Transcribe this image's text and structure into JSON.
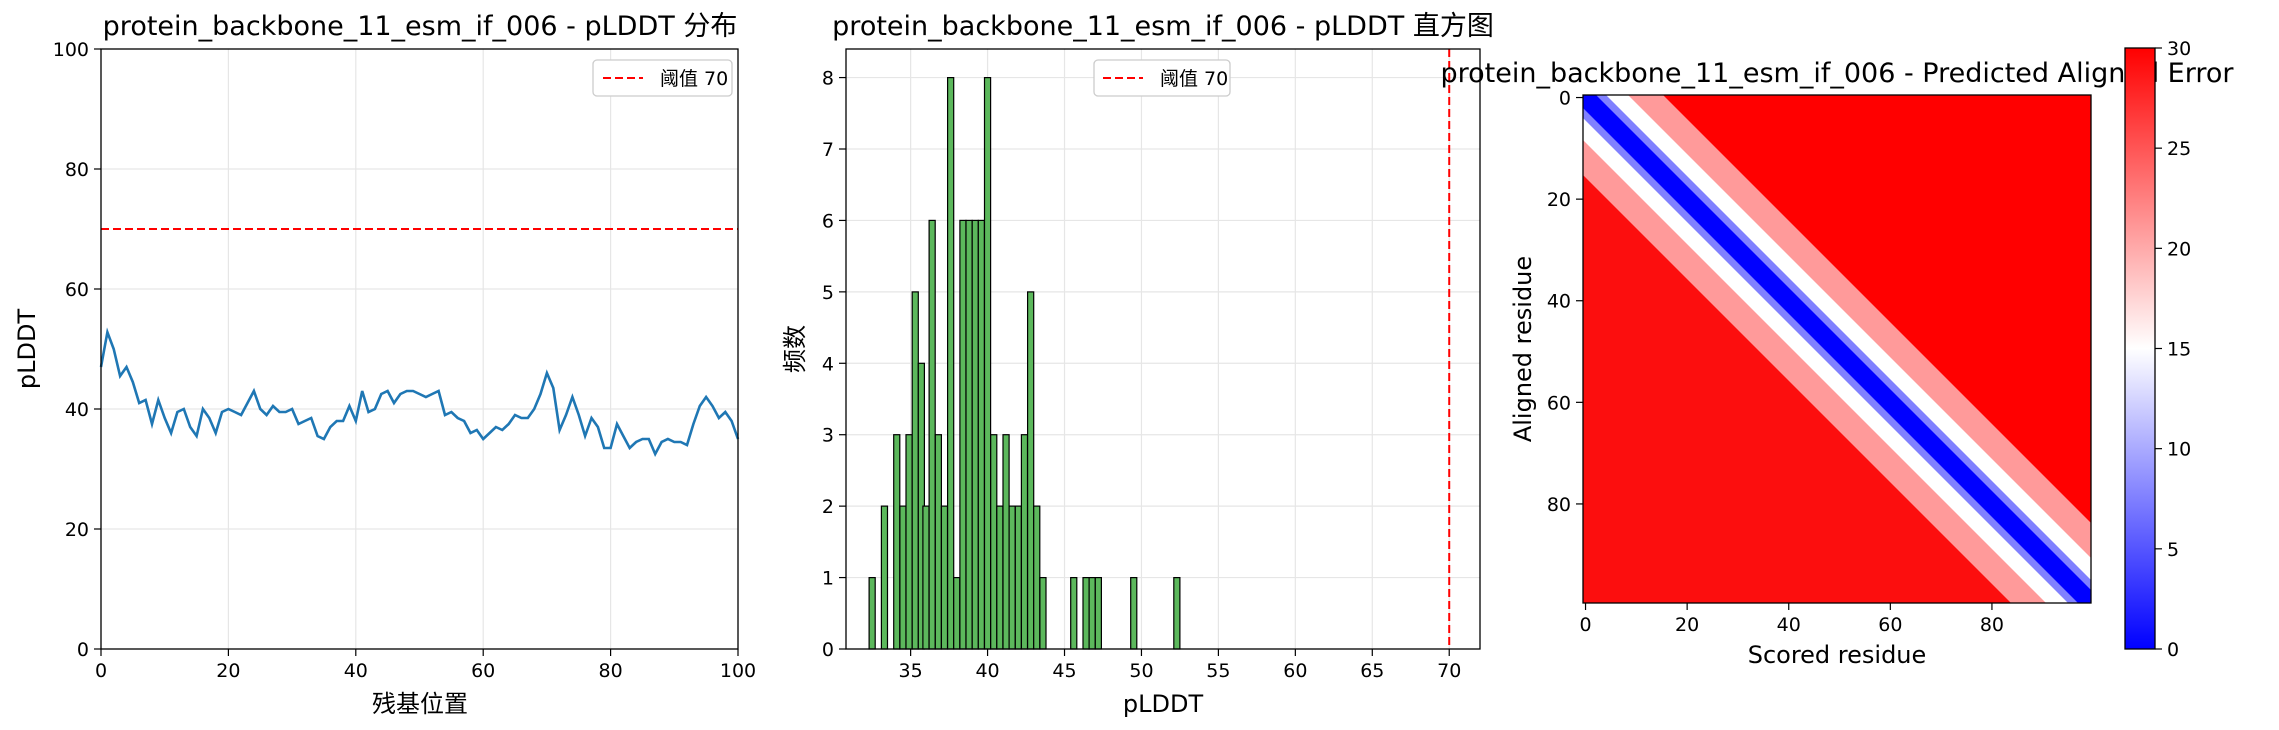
{
  "chart_data": [
    {
      "type": "line",
      "title": "protein_backbone_11_esm_if_006 - pLDDT 分布",
      "xlabel": "残基位置",
      "ylabel": "pLDDT",
      "xlim": [
        0,
        100
      ],
      "ylim": [
        0,
        100
      ],
      "xticks": [
        0,
        20,
        40,
        60,
        80,
        100
      ],
      "yticks": [
        0,
        20,
        40,
        60,
        80,
        100
      ],
      "grid": true,
      "legend": "top-right",
      "threshold": {
        "value": 70,
        "label": "阈值 70",
        "color": "#ff0000",
        "style": "dashed"
      },
      "series": [
        {
          "color": "#1f77b4",
          "x": [
            0,
            1,
            2,
            3,
            4,
            5,
            6,
            7,
            8,
            9,
            10,
            11,
            12,
            13,
            14,
            15,
            16,
            17,
            18,
            19,
            20,
            21,
            22,
            23,
            24,
            25,
            26,
            27,
            28,
            29,
            30,
            31,
            32,
            33,
            34,
            35,
            36,
            37,
            38,
            39,
            40,
            41,
            42,
            43,
            44,
            45,
            46,
            47,
            48,
            49,
            50,
            51,
            52,
            53,
            54,
            55,
            56,
            57,
            58,
            59,
            60,
            61,
            62,
            63,
            64,
            65,
            66,
            67,
            68,
            69,
            70,
            71,
            72,
            73,
            74,
            75,
            76,
            77,
            78,
            79,
            80,
            81,
            82,
            83,
            84,
            85,
            86,
            87,
            88,
            89,
            90,
            91,
            92,
            93,
            94,
            95,
            96,
            97,
            98,
            99,
            100
          ],
          "values": [
            47,
            52.8,
            50,
            45.5,
            47,
            44.5,
            41,
            41.5,
            37.5,
            41.5,
            38.5,
            36,
            39.5,
            40,
            37,
            35.5,
            40,
            38.5,
            36,
            39.5,
            40,
            39.5,
            39,
            41,
            43,
            40,
            39,
            40.5,
            39.5,
            39.5,
            40,
            37.5,
            38,
            38.5,
            35.5,
            35,
            37,
            38,
            38,
            40.5,
            38,
            43,
            39.5,
            40,
            42.5,
            43,
            41,
            42.5,
            43,
            43,
            42.5,
            42,
            42.5,
            43,
            39,
            39.5,
            38.5,
            38,
            36,
            36.5,
            35,
            36,
            37,
            36.5,
            37.5,
            39,
            38.5,
            38.5,
            40,
            42.5,
            46,
            43.5,
            36.5,
            39,
            42,
            39,
            35.5,
            38.5,
            37,
            33.5,
            33.5,
            37.5,
            35.5,
            33.5,
            34.5,
            35,
            35,
            32.5,
            34.5,
            35,
            34.5,
            34.5,
            34,
            37.5,
            40.5,
            42,
            40.5,
            38.5,
            39.5,
            38,
            35
          ]
        }
      ]
    },
    {
      "type": "bar",
      "title": "protein_backbone_11_esm_if_006 - pLDDT 直方图",
      "xlabel": "pLDDT",
      "ylabel": "频数",
      "xlim": [
        30.8,
        72.0
      ],
      "ylim": [
        0,
        8.4
      ],
      "xticks": [
        35,
        40,
        45,
        50,
        55,
        60,
        65,
        70
      ],
      "yticks": [
        0,
        1,
        2,
        3,
        4,
        5,
        6,
        7,
        8
      ],
      "grid": true,
      "legend": "top-center",
      "bar_color": "#5cb85c",
      "threshold": {
        "value": 70,
        "label": "阈值 70",
        "color": "#ff0000",
        "style": "dashed"
      },
      "bin_width": 0.396,
      "bins_start": [
        32.3,
        32.7,
        33.1,
        33.5,
        33.9,
        34.3,
        34.7,
        35.1,
        35.5,
        35.8,
        36.2,
        36.6,
        37.0,
        37.4,
        37.8,
        38.2,
        38.6,
        39.0,
        39.4,
        39.8,
        40.2,
        40.6,
        41.0,
        41.4,
        41.8,
        42.2,
        42.6,
        43.0,
        43.4,
        45.4,
        46.2,
        46.6,
        47.0,
        49.3,
        52.1
      ],
      "values": [
        1,
        0,
        2,
        0,
        3,
        2,
        3,
        5,
        4,
        2,
        6,
        3,
        2,
        8,
        1,
        6,
        6,
        6,
        6,
        8,
        3,
        2,
        3,
        2,
        2,
        3,
        5,
        2,
        1,
        1,
        1,
        1,
        1,
        1,
        1
      ]
    },
    {
      "type": "heatmap",
      "title": "protein_backbone_11_esm_if_006 - Predicted Aligned Error",
      "xlabel": "Scored residue",
      "ylabel": "Aligned residue",
      "size": 100,
      "xticks": [
        0,
        20,
        40,
        60,
        80
      ],
      "yticks": [
        0,
        20,
        40,
        60,
        80
      ],
      "colormap": "bwr",
      "colorbar": {
        "min": 0,
        "max": 30,
        "ticks": [
          0,
          5,
          10,
          15,
          20,
          25,
          30
        ]
      }
    }
  ]
}
